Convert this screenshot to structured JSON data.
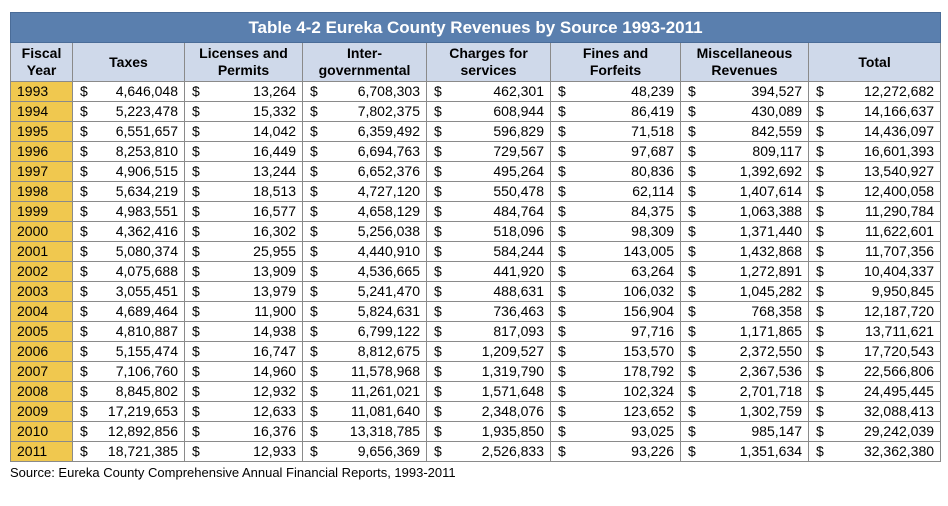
{
  "table": {
    "title": "Table 4-2 Eureka County Revenues by Source 1993-2011",
    "columns": [
      {
        "line1": "Fiscal",
        "line2": "Year"
      },
      {
        "line1": "Taxes",
        "line2": ""
      },
      {
        "line1": "Licenses and",
        "line2": "Permits"
      },
      {
        "line1": "Inter-",
        "line2": "governmental"
      },
      {
        "line1": "Charges for",
        "line2": "services"
      },
      {
        "line1": "Fines and",
        "line2": "Forfeits"
      },
      {
        "line1": "Miscellaneous",
        "line2": "Revenues"
      },
      {
        "line1": "Total",
        "line2": ""
      }
    ],
    "currency_symbol": "$",
    "rows": [
      [
        "1993",
        "4,646,048",
        "13,264",
        "6,708,303",
        "462,301",
        "48,239",
        "394,527",
        "12,272,682"
      ],
      [
        "1994",
        "5,223,478",
        "15,332",
        "7,802,375",
        "608,944",
        "86,419",
        "430,089",
        "14,166,637"
      ],
      [
        "1995",
        "6,551,657",
        "14,042",
        "6,359,492",
        "596,829",
        "71,518",
        "842,559",
        "14,436,097"
      ],
      [
        "1996",
        "8,253,810",
        "16,449",
        "6,694,763",
        "729,567",
        "97,687",
        "809,117",
        "16,601,393"
      ],
      [
        "1997",
        "4,906,515",
        "13,244",
        "6,652,376",
        "495,264",
        "80,836",
        "1,392,692",
        "13,540,927"
      ],
      [
        "1998",
        "5,634,219",
        "18,513",
        "4,727,120",
        "550,478",
        "62,114",
        "1,407,614",
        "12,400,058"
      ],
      [
        "1999",
        "4,983,551",
        "16,577",
        "4,658,129",
        "484,764",
        "84,375",
        "1,063,388",
        "11,290,784"
      ],
      [
        "2000",
        "4,362,416",
        "16,302",
        "5,256,038",
        "518,096",
        "98,309",
        "1,371,440",
        "11,622,601"
      ],
      [
        "2001",
        "5,080,374",
        "25,955",
        "4,440,910",
        "584,244",
        "143,005",
        "1,432,868",
        "11,707,356"
      ],
      [
        "2002",
        "4,075,688",
        "13,909",
        "4,536,665",
        "441,920",
        "63,264",
        "1,272,891",
        "10,404,337"
      ],
      [
        "2003",
        "3,055,451",
        "13,979",
        "5,241,470",
        "488,631",
        "106,032",
        "1,045,282",
        "9,950,845"
      ],
      [
        "2004",
        "4,689,464",
        "11,900",
        "5,824,631",
        "736,463",
        "156,904",
        "768,358",
        "12,187,720"
      ],
      [
        "2005",
        "4,810,887",
        "14,938",
        "6,799,122",
        "817,093",
        "97,716",
        "1,171,865",
        "13,711,621"
      ],
      [
        "2006",
        "5,155,474",
        "16,747",
        "8,812,675",
        "1,209,527",
        "153,570",
        "2,372,550",
        "17,720,543"
      ],
      [
        "2007",
        "7,106,760",
        "14,960",
        "11,578,968",
        "1,319,790",
        "178,792",
        "2,367,536",
        "22,566,806"
      ],
      [
        "2008",
        "8,845,802",
        "12,932",
        "11,261,021",
        "1,571,648",
        "102,324",
        "2,701,718",
        "24,495,445"
      ],
      [
        "2009",
        "17,219,653",
        "12,633",
        "11,081,640",
        "2,348,076",
        "123,652",
        "1,302,759",
        "32,088,413"
      ],
      [
        "2010",
        "12,892,856",
        "16,376",
        "13,318,785",
        "1,935,850",
        "93,025",
        "985,147",
        "29,242,039"
      ],
      [
        "2011",
        "18,721,385",
        "12,933",
        "9,656,369",
        "2,526,833",
        "93,226",
        "1,351,634",
        "32,362,380"
      ]
    ]
  },
  "source": "Source: Eureka County Comprehensive Annual Financial Reports, 1993-2011"
}
